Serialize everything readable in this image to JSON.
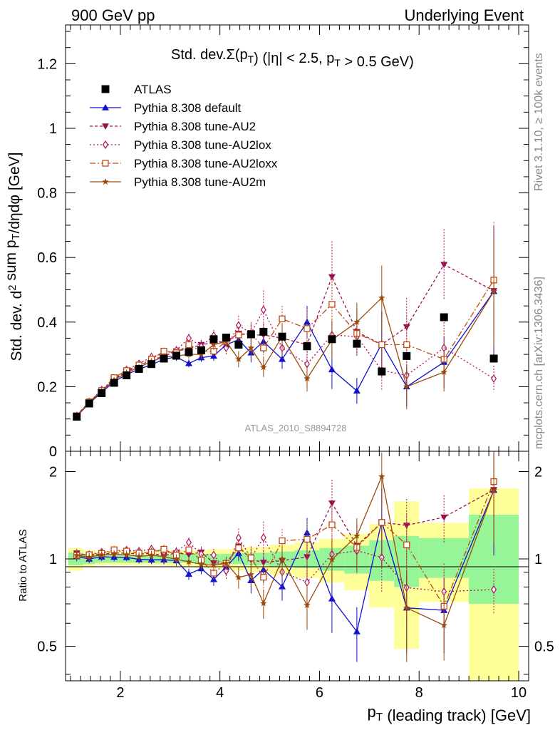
{
  "header": {
    "left": "900 GeV pp",
    "right": "Underlying Event"
  },
  "side": {
    "rivet": "Rivet 3.1.10, ≥ 100k events",
    "mcplots": "mcplots.cern.ch [arXiv:1306.3436]"
  },
  "chart_data": {
    "type": "line",
    "title": "Std. dev.Σ(p_T) (|η| < 2.5, p_T > 0.5 GeV)",
    "ylabel": "Std. dev. d² sum p_T/dηdφ [GeV]",
    "ratio_ylabel": "Ratio to ATLAS",
    "xlabel": "p_T (leading track) [GeV]",
    "analysis_label": "ATLAS_2010_S8894728",
    "xlim": [
      0.9,
      10.2
    ],
    "ylim": [
      0,
      1.32
    ],
    "ratio_ylim": [
      0.38,
      2.35
    ],
    "x_ticks": [
      "2",
      "4",
      "6",
      "8",
      "10"
    ],
    "y_ticks": [
      "0.2",
      "0.4",
      "0.6",
      "0.8",
      "1",
      "1.2"
    ],
    "y_tick_partial": "0",
    "ratio_ticks": [
      "0.5",
      "1",
      "2"
    ],
    "legend_position": "top-left",
    "x": [
      1.125,
      1.375,
      1.625,
      1.875,
      2.125,
      2.375,
      2.625,
      2.875,
      3.125,
      3.375,
      3.625,
      3.875,
      4.125,
      4.375,
      4.625,
      4.875,
      5.25,
      5.75,
      6.25,
      6.75,
      7.25,
      7.75,
      8.5,
      9.5
    ],
    "atlas": {
      "name": "ATLAS",
      "values": [
        0.107,
        0.148,
        0.18,
        0.212,
        0.235,
        0.255,
        0.27,
        0.287,
        0.296,
        0.307,
        0.313,
        0.347,
        0.352,
        0.33,
        0.362,
        0.37,
        0.355,
        0.325,
        0.347,
        0.333,
        0.247,
        0.295,
        0.415,
        0.287
      ]
    },
    "series": [
      {
        "name": "Pythia 8.308 default",
        "color": "#1010d0",
        "dash": "",
        "marker": "triangle-up",
        "values": [
          0.109,
          0.148,
          0.183,
          0.215,
          0.238,
          0.254,
          0.268,
          0.285,
          0.292,
          0.272,
          0.29,
          0.295,
          0.33,
          0.345,
          0.305,
          0.34,
          0.285,
          0.4,
          0.253,
          0.187,
          0.333,
          0.2,
          0.276,
          0.495
        ],
        "errors": [
          0.004,
          0.005,
          0.006,
          0.007,
          0.007,
          0.008,
          0.009,
          0.01,
          0.012,
          0.012,
          0.013,
          0.015,
          0.017,
          0.02,
          0.03,
          0.035,
          0.03,
          0.05,
          0.06,
          0.04,
          0.1,
          0.06,
          0.08,
          0.2
        ]
      },
      {
        "name": "Pythia 8.308 tune-AU2",
        "color": "#9b1050",
        "dash": "4,3",
        "marker": "triangle-down",
        "values": [
          0.112,
          0.152,
          0.187,
          0.222,
          0.246,
          0.265,
          0.282,
          0.295,
          0.31,
          0.318,
          0.33,
          0.336,
          0.34,
          0.365,
          0.36,
          0.36,
          0.35,
          0.33,
          0.54,
          0.37,
          0.33,
          0.385,
          0.578,
          0.497
        ],
        "errors": [
          0.004,
          0.005,
          0.006,
          0.007,
          0.008,
          0.009,
          0.01,
          0.011,
          0.012,
          0.014,
          0.015,
          0.016,
          0.018,
          0.025,
          0.03,
          0.035,
          0.04,
          0.05,
          0.11,
          0.07,
          0.1,
          0.09,
          0.11,
          0.2
        ]
      },
      {
        "name": "Pythia 8.308 tune-AU2lox",
        "color": "#b01060",
        "dash": "2,3",
        "marker": "diamond",
        "values": [
          0.11,
          0.153,
          0.19,
          0.224,
          0.252,
          0.271,
          0.292,
          0.302,
          0.313,
          0.35,
          0.325,
          0.358,
          0.32,
          0.39,
          0.365,
          0.438,
          0.32,
          0.27,
          0.36,
          0.355,
          0.25,
          0.235,
          0.32,
          0.225
        ],
        "errors": [
          0.004,
          0.005,
          0.006,
          0.007,
          0.008,
          0.009,
          0.01,
          0.011,
          0.012,
          0.014,
          0.016,
          0.018,
          0.02,
          0.03,
          0.035,
          0.06,
          0.04,
          0.05,
          0.06,
          0.06,
          0.06,
          0.06,
          0.08,
          0.04
        ]
      },
      {
        "name": "Pythia 8.308 tune-AU2loxx",
        "color": "#c04a10",
        "dash": "8,3,2,3",
        "marker": "square-open",
        "values": [
          0.11,
          0.153,
          0.188,
          0.228,
          0.25,
          0.267,
          0.285,
          0.31,
          0.305,
          0.33,
          0.31,
          0.31,
          0.34,
          0.36,
          0.365,
          0.32,
          0.41,
          0.38,
          0.455,
          0.365,
          0.33,
          0.33,
          0.285,
          0.53
        ],
        "errors": [
          0.004,
          0.005,
          0.006,
          0.007,
          0.008,
          0.009,
          0.01,
          0.011,
          0.012,
          0.014,
          0.015,
          0.016,
          0.018,
          0.025,
          0.03,
          0.035,
          0.04,
          0.06,
          0.08,
          0.07,
          0.1,
          0.09,
          0.09,
          0.18
        ]
      },
      {
        "name": "Pythia 8.308 tune-AU2m",
        "color": "#9a4a0c",
        "dash": "",
        "marker": "star",
        "values": [
          0.11,
          0.15,
          0.186,
          0.22,
          0.243,
          0.26,
          0.278,
          0.292,
          0.295,
          0.3,
          0.3,
          0.33,
          0.34,
          0.285,
          0.32,
          0.26,
          0.355,
          0.225,
          0.345,
          0.4,
          0.475,
          0.2,
          0.245,
          0.495
        ],
        "errors": [
          0.004,
          0.005,
          0.006,
          0.007,
          0.008,
          0.009,
          0.01,
          0.011,
          0.012,
          0.013,
          0.014,
          0.016,
          0.018,
          0.025,
          0.03,
          0.03,
          0.04,
          0.04,
          0.06,
          0.06,
          0.1,
          0.07,
          0.06,
          0.17
        ]
      }
    ],
    "ratio_bands": [
      {
        "x0": 0.95,
        "x1": 1.25,
        "green": [
          0.95,
          1.05
        ],
        "yellow": [
          0.91,
          1.09
        ]
      },
      {
        "x0": 1.25,
        "x1": 1.5,
        "green": [
          0.96,
          1.04
        ],
        "yellow": [
          0.94,
          1.07
        ]
      },
      {
        "x0": 1.5,
        "x1": 1.75,
        "green": [
          0.97,
          1.03
        ],
        "yellow": [
          0.95,
          1.06
        ]
      },
      {
        "x0": 1.75,
        "x1": 2.0,
        "green": [
          0.97,
          1.03
        ],
        "yellow": [
          0.95,
          1.06
        ]
      },
      {
        "x0": 2.0,
        "x1": 2.25,
        "green": [
          0.97,
          1.03
        ],
        "yellow": [
          0.95,
          1.06
        ]
      },
      {
        "x0": 2.25,
        "x1": 2.5,
        "green": [
          0.97,
          1.03
        ],
        "yellow": [
          0.95,
          1.06
        ]
      },
      {
        "x0": 2.5,
        "x1": 2.75,
        "green": [
          0.97,
          1.03
        ],
        "yellow": [
          0.95,
          1.06
        ]
      },
      {
        "x0": 2.75,
        "x1": 3.0,
        "green": [
          0.97,
          1.03
        ],
        "yellow": [
          0.95,
          1.06
        ]
      },
      {
        "x0": 3.0,
        "x1": 3.25,
        "green": [
          0.97,
          1.04
        ],
        "yellow": [
          0.94,
          1.07
        ]
      },
      {
        "x0": 3.25,
        "x1": 3.5,
        "green": [
          0.97,
          1.04
        ],
        "yellow": [
          0.94,
          1.07
        ]
      },
      {
        "x0": 3.5,
        "x1": 3.75,
        "green": [
          0.96,
          1.04
        ],
        "yellow": [
          0.93,
          1.07
        ]
      },
      {
        "x0": 3.75,
        "x1": 4.0,
        "green": [
          0.96,
          1.04
        ],
        "yellow": [
          0.93,
          1.08
        ]
      },
      {
        "x0": 4.0,
        "x1": 4.25,
        "green": [
          0.96,
          1.04
        ],
        "yellow": [
          0.92,
          1.08
        ]
      },
      {
        "x0": 4.25,
        "x1": 4.5,
        "green": [
          0.96,
          1.05
        ],
        "yellow": [
          0.91,
          1.09
        ]
      },
      {
        "x0": 4.5,
        "x1": 4.75,
        "green": [
          0.95,
          1.05
        ],
        "yellow": [
          0.9,
          1.1
        ]
      },
      {
        "x0": 4.75,
        "x1": 5.0,
        "green": [
          0.95,
          1.05
        ],
        "yellow": [
          0.9,
          1.1
        ]
      },
      {
        "x0": 5.0,
        "x1": 5.5,
        "green": [
          0.94,
          1.06
        ],
        "yellow": [
          0.88,
          1.12
        ]
      },
      {
        "x0": 5.5,
        "x1": 6.0,
        "green": [
          0.93,
          1.07
        ],
        "yellow": [
          0.86,
          1.14
        ]
      },
      {
        "x0": 6.0,
        "x1": 6.5,
        "green": [
          0.91,
          1.09
        ],
        "yellow": [
          0.83,
          1.17
        ]
      },
      {
        "x0": 6.5,
        "x1": 7.0,
        "green": [
          0.89,
          1.11
        ],
        "yellow": [
          0.78,
          1.22
        ]
      },
      {
        "x0": 7.0,
        "x1": 7.5,
        "green": [
          0.84,
          1.16
        ],
        "yellow": [
          0.68,
          1.32
        ]
      },
      {
        "x0": 7.5,
        "x1": 8.0,
        "green": [
          0.8,
          1.2
        ],
        "yellow": [
          0.49,
          1.58
        ]
      },
      {
        "x0": 8.0,
        "x1": 9.0,
        "green": [
          0.86,
          1.18
        ],
        "yellow": [
          0.71,
          1.33
        ]
      },
      {
        "x0": 9.0,
        "x1": 10.0,
        "green": [
          0.7,
          1.42
        ],
        "yellow": [
          0.38,
          1.75
        ]
      }
    ]
  }
}
